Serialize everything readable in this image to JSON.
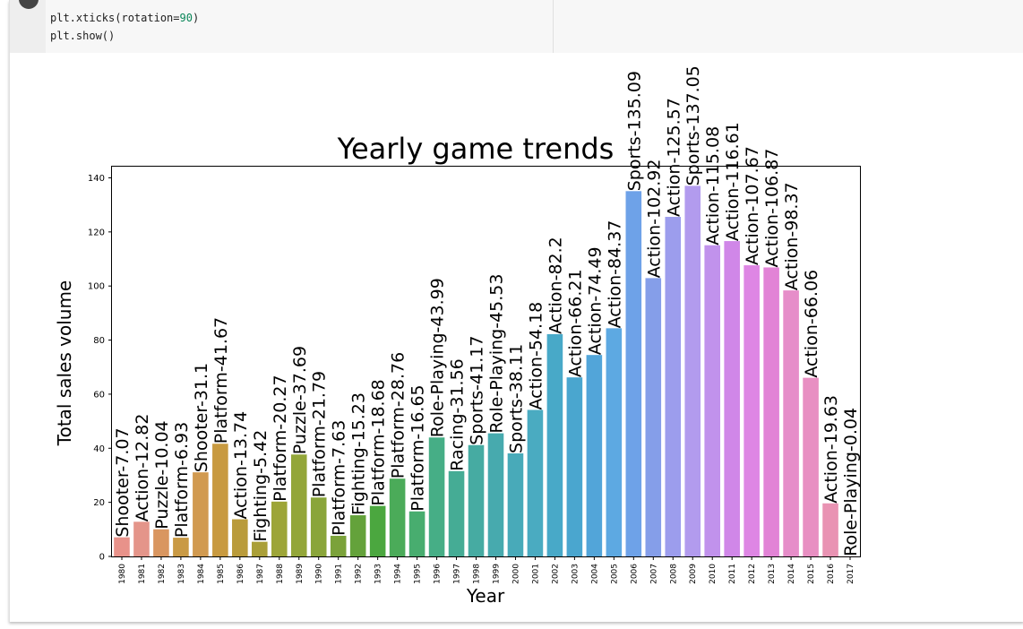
{
  "notebook": {
    "code_lines": [
      {
        "pre": "plt.xticks(rotation=",
        "num": "90",
        "post": ")"
      },
      {
        "pre": "plt.show()",
        "num": "",
        "post": ""
      }
    ]
  },
  "chart_data": {
    "type": "bar",
    "title": "Yearly game trends",
    "xlabel": "Year",
    "ylabel": "Total sales volume",
    "ylim": [
      0,
      144
    ],
    "yticks": [
      0,
      20,
      40,
      60,
      80,
      100,
      120,
      140
    ],
    "categories": [
      "1980",
      "1981",
      "1982",
      "1983",
      "1984",
      "1985",
      "1986",
      "1987",
      "1988",
      "1989",
      "1990",
      "1991",
      "1992",
      "1993",
      "1994",
      "1995",
      "1996",
      "1997",
      "1998",
      "1999",
      "2000",
      "2001",
      "2002",
      "2003",
      "2004",
      "2005",
      "2006",
      "2007",
      "2008",
      "2009",
      "2010",
      "2011",
      "2012",
      "2013",
      "2014",
      "2015",
      "2016",
      "2017"
    ],
    "values": [
      7.07,
      12.82,
      10.04,
      6.93,
      31.1,
      41.67,
      13.74,
      5.42,
      20.27,
      37.69,
      21.79,
      7.63,
      15.23,
      18.68,
      28.76,
      16.65,
      43.99,
      31.56,
      41.17,
      45.53,
      38.11,
      54.18,
      82.2,
      66.21,
      74.49,
      84.37,
      135.09,
      102.92,
      125.57,
      137.05,
      115.08,
      116.61,
      107.67,
      106.87,
      98.37,
      66.06,
      19.63,
      0.04
    ],
    "bar_labels": [
      "Shooter-7.07",
      "Action-12.82",
      "Puzzle-10.04",
      "Platform-6.93",
      "Shooter-31.1",
      "Platform-41.67",
      "Action-13.74",
      "Fighting-5.42",
      "Platform-20.27",
      "Puzzle-37.69",
      "Platform-21.79",
      "Platform-7.63",
      "Fighting-15.23",
      "Platform-18.68",
      "Platform-28.76",
      "Platform-16.65",
      "Role-Playing-43.99",
      "Racing-31.56",
      "Sports-41.17",
      "Role-Playing-45.53",
      "Sports-38.11",
      "Action-54.18",
      "Action-82.2",
      "Action-66.21",
      "Action-74.49",
      "Action-84.37",
      "Sports-135.09",
      "Action-102.92",
      "Action-125.57",
      "Sports-137.05",
      "Action-115.08",
      "Action-116.61",
      "Action-107.67",
      "Action-106.87",
      "Action-98.37",
      "Action-66.06",
      "Action-19.63",
      "Role-Playing-0.04"
    ],
    "colors": [
      "#e8928a",
      "#e4958a",
      "#d99660",
      "#c99a45",
      "#d19a50",
      "#c89a40",
      "#b99b3b",
      "#aa9f38",
      "#9da538",
      "#93a639",
      "#8aa53a",
      "#7ba23a",
      "#64a23b",
      "#4ba73f",
      "#4bab59",
      "#48ad6f",
      "#46ae86",
      "#45ac95",
      "#46aba2",
      "#47aaae",
      "#48aab9",
      "#4aabc1",
      "#48a9c8",
      "#4aa6cf",
      "#52a5d9",
      "#5da9e2",
      "#6ea2e8",
      "#859ee9",
      "#9c9ded",
      "#b29bee",
      "#c192ec",
      "#d087e8",
      "#de86e4",
      "#e283d6",
      "#e68dc9",
      "#e88fc2",
      "#e993b3",
      "#e793a5"
    ],
    "grid": false,
    "legend": "none"
  }
}
